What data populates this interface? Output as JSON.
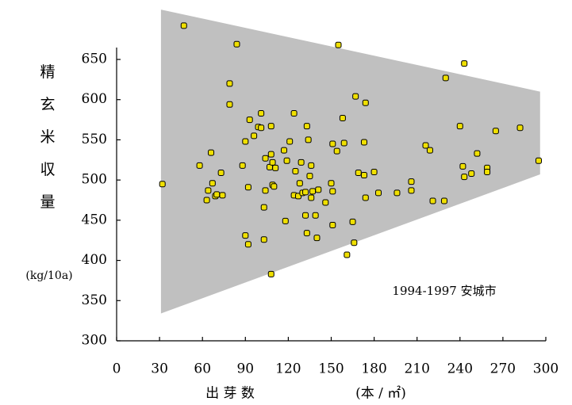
{
  "chart_data": {
    "type": "scatter",
    "y_label_chars": [
      "精",
      "玄",
      "米",
      "収",
      "量"
    ],
    "y_unit": "(kg/10a)",
    "x_label": "出 芽 数",
    "x_unit": "(本 / ㎡)",
    "annotation": "1994-1997  安城市",
    "xlim": [
      0,
      300
    ],
    "xticks": [
      0,
      30,
      60,
      90,
      120,
      150,
      180,
      210,
      240,
      270,
      300
    ],
    "ylim": [
      300,
      720
    ],
    "yticks": [
      300,
      350,
      400,
      450,
      500,
      550,
      600,
      650
    ],
    "envelope": {
      "color": "#c0c0c0",
      "x": [
        31,
        296,
        296,
        31
      ],
      "y": [
        712,
        610,
        507,
        334
      ]
    },
    "series": [
      {
        "color": "#f0e000",
        "x": [
          32,
          47,
          84,
          79,
          79,
          58,
          66,
          67,
          64,
          69,
          63,
          73,
          70,
          74,
          88,
          92,
          90,
          92,
          93,
          90,
          96,
          99,
          101,
          101,
          108,
          108,
          104,
          107,
          109,
          111,
          109,
          104,
          110,
          103,
          103,
          108,
          124,
          117,
          121,
          119,
          125,
          129,
          128,
          124,
          127,
          130,
          118,
          132,
          133,
          134,
          136,
          135,
          132,
          137,
          136,
          141,
          139,
          133,
          140,
          146,
          151,
          150,
          151,
          151,
          154,
          155,
          158,
          159,
          165,
          166,
          161,
          167,
          174,
          169,
          173,
          174,
          173,
          180,
          183,
          196,
          206,
          206,
          216,
          219,
          221,
          229,
          230,
          240,
          243,
          242,
          243,
          252,
          259,
          259,
          248,
          265,
          282,
          295
        ],
        "values": [
          495,
          692,
          669,
          620,
          594,
          518,
          534,
          496,
          487,
          480,
          475,
          509,
          482,
          481,
          518,
          491,
          431,
          420,
          575,
          548,
          555,
          566,
          583,
          565,
          567,
          532,
          527,
          516,
          522,
          515,
          494,
          487,
          492,
          466,
          426,
          383,
          583,
          537,
          548,
          524,
          511,
          522,
          496,
          481,
          480,
          484,
          449,
          456,
          567,
          550,
          518,
          505,
          485,
          486,
          478,
          488,
          456,
          434,
          428,
          472,
          486,
          496,
          444,
          545,
          536,
          668,
          577,
          546,
          448,
          422,
          407,
          604,
          596,
          509,
          506,
          478,
          547,
          510,
          484,
          484,
          487,
          498,
          543,
          537,
          474,
          474,
          627,
          567,
          645,
          517,
          504,
          533,
          515,
          510,
          508,
          561,
          565,
          524
        ]
      }
    ]
  }
}
